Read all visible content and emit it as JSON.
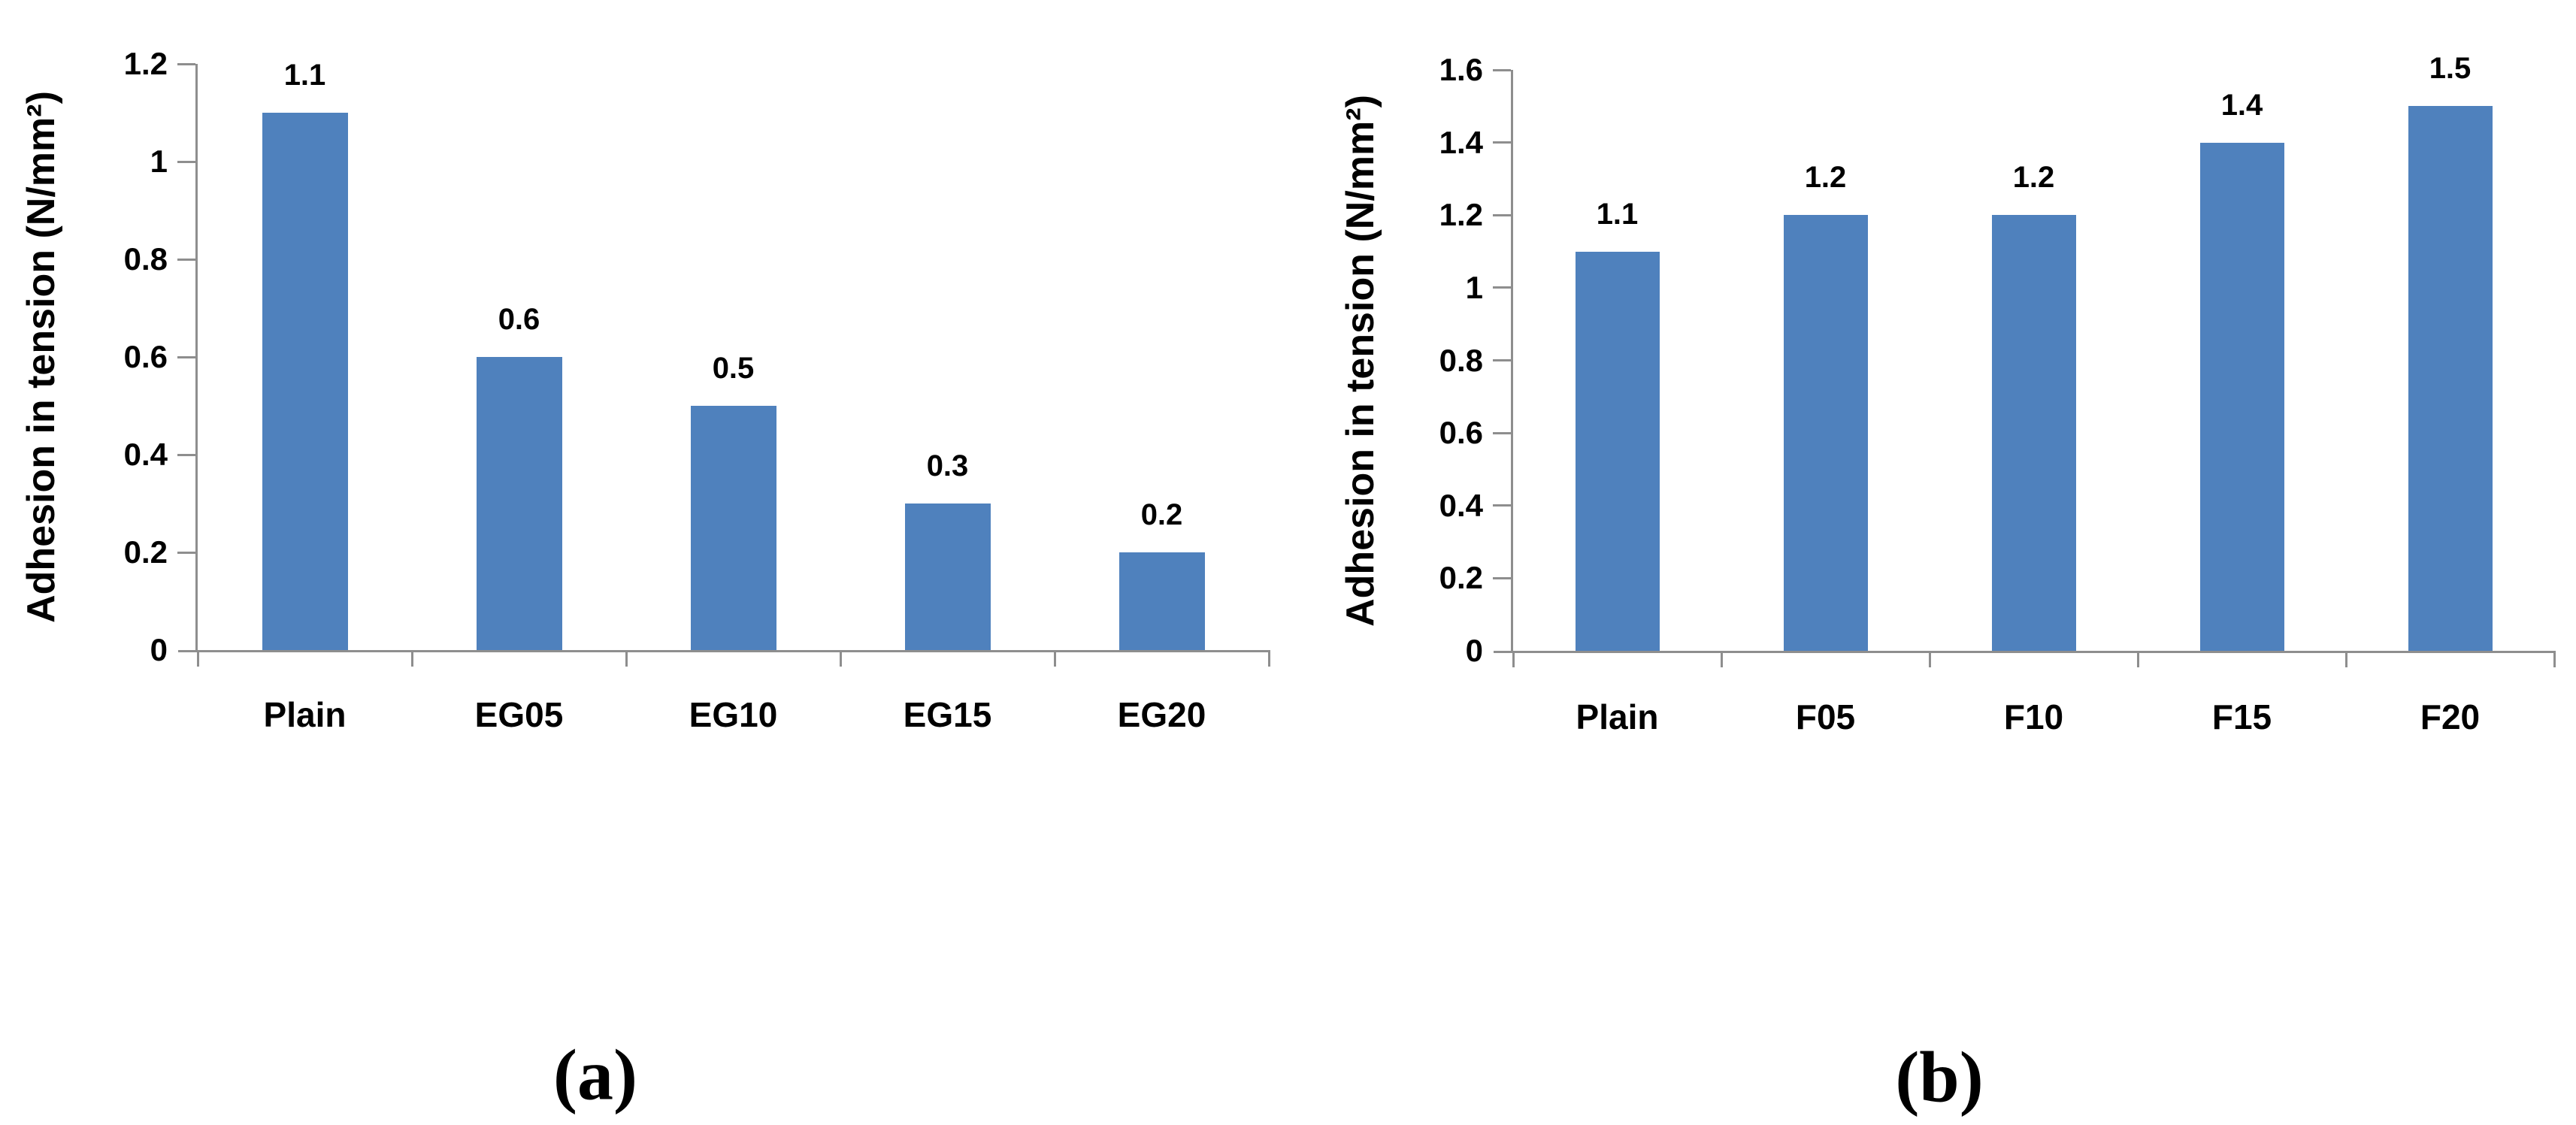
{
  "colors": {
    "bar": "#4F81BD",
    "axis": "#8E8E8E",
    "text": "#000000",
    "background": "#FFFFFF"
  },
  "chart_data": [
    {
      "id": "a",
      "type": "bar",
      "title": "",
      "caption": "(a)",
      "xlabel": "",
      "ylabel": "Adhesion in tension (N/mm²)",
      "categories": [
        "Plain",
        "EG05",
        "EG10",
        "EG15",
        "EG20"
      ],
      "values": [
        1.1,
        0.6,
        0.5,
        0.3,
        0.2
      ],
      "data_labels": [
        "1.1",
        "0.6",
        "0.5",
        "0.3",
        "0.2"
      ],
      "ylim": [
        0,
        1.2
      ],
      "ytick_step": 0.2,
      "ytick_labels": [
        "0",
        "0.2",
        "0.4",
        "0.6",
        "0.8",
        "1",
        "1.2"
      ],
      "grid": false,
      "legend": "none"
    },
    {
      "id": "b",
      "type": "bar",
      "title": "",
      "caption": "(b)",
      "xlabel": "",
      "ylabel": "Adhesion in tension (N/mm²)",
      "categories": [
        "Plain",
        "F05",
        "F10",
        "F15",
        "F20"
      ],
      "values": [
        1.1,
        1.2,
        1.2,
        1.4,
        1.5
      ],
      "data_labels": [
        "1.1",
        "1.2",
        "1.2",
        "1.4",
        "1.5"
      ],
      "ylim": [
        0,
        1.6
      ],
      "ytick_step": 0.2,
      "ytick_labels": [
        "0",
        "0.2",
        "0.4",
        "0.6",
        "0.8",
        "1",
        "1.2",
        "1.4",
        "1.6"
      ],
      "grid": false,
      "legend": "none"
    }
  ]
}
